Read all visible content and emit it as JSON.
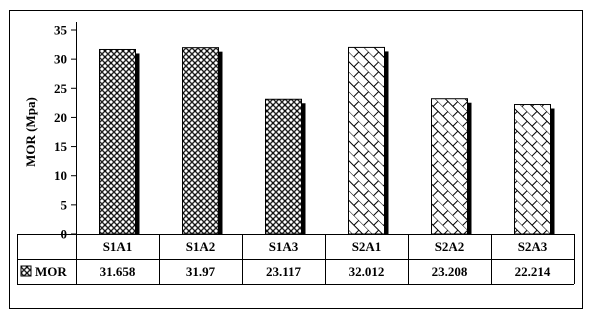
{
  "chart_data": {
    "type": "bar",
    "title": "",
    "xlabel": "",
    "ylabel": "MOR (Mpa)",
    "ylim": [
      0,
      35
    ],
    "yticks": [
      0,
      5,
      10,
      15,
      20,
      25,
      30,
      35
    ],
    "categories": [
      "S1A1",
      "S1A2",
      "S1A3",
      "S2A1",
      "S2A2",
      "S2A3"
    ],
    "series": [
      {
        "name": "MOR",
        "values": [
          31.658,
          31.97,
          23.117,
          32.012,
          23.208,
          22.214
        ],
        "value_labels": [
          "31.658",
          "31.97",
          "23.117",
          "32.012",
          "23.208",
          "22.214"
        ],
        "patterns": [
          "crosshatch",
          "crosshatch",
          "crosshatch",
          "brick",
          "brick",
          "brick"
        ]
      }
    ],
    "legend": "data-table-left",
    "grid": false
  }
}
